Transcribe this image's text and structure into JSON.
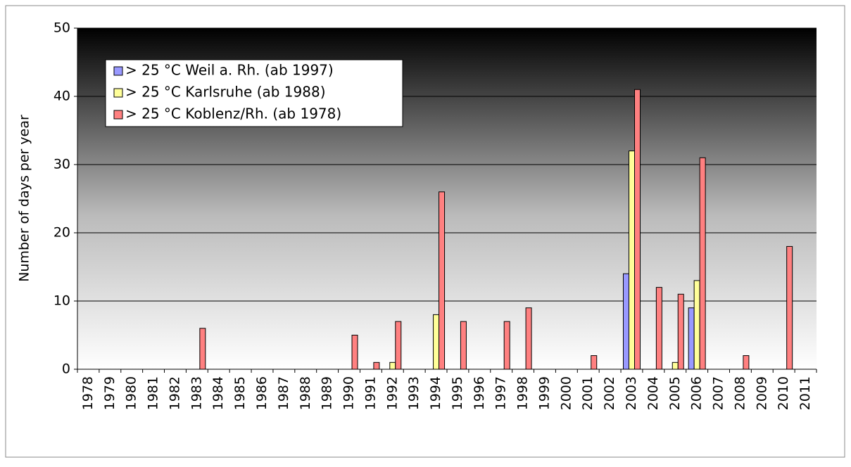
{
  "chart_data": {
    "type": "bar",
    "y_axis_label": "Number of days per year",
    "categories": [
      "1978",
      "1979",
      "1980",
      "1981",
      "1982",
      "1983",
      "1984",
      "1985",
      "1986",
      "1987",
      "1988",
      "1989",
      "1990",
      "1991",
      "1992",
      "1993",
      "1994",
      "1995",
      "1996",
      "1997",
      "1998",
      "1999",
      "2000",
      "2001",
      "2002",
      "2003",
      "2004",
      "2005",
      "2006",
      "2007",
      "2008",
      "2009",
      "2010",
      "2011"
    ],
    "series": [
      {
        "name": "> 25 °C Weil a. Rh. (ab 1997)",
        "color": "#9999ff",
        "values": [
          null,
          null,
          null,
          null,
          null,
          null,
          null,
          null,
          null,
          null,
          null,
          null,
          null,
          null,
          null,
          null,
          null,
          null,
          null,
          0,
          0,
          0,
          0,
          0,
          0,
          14,
          0,
          0,
          9,
          0,
          0,
          0,
          0,
          0
        ]
      },
      {
        "name": "> 25 °C Karlsruhe (ab 1988)",
        "color": "#ffff99",
        "values": [
          null,
          null,
          null,
          null,
          null,
          null,
          null,
          null,
          null,
          null,
          0,
          0,
          0,
          0,
          1,
          0,
          8,
          0,
          0,
          0,
          0,
          0,
          0,
          0,
          0,
          32,
          0,
          1,
          13,
          0,
          0,
          0,
          0,
          0
        ]
      },
      {
        "name": "> 25 °C Koblenz/Rh. (ab 1978)",
        "color": "#ff8080",
        "values": [
          0,
          0,
          0,
          0,
          0,
          6,
          0,
          0,
          0,
          0,
          0,
          0,
          5,
          1,
          7,
          0,
          26,
          7,
          0,
          7,
          9,
          0,
          0,
          2,
          0,
          41,
          12,
          11,
          31,
          0,
          2,
          0,
          18,
          0
        ]
      }
    ],
    "ylim": [
      0,
      50
    ],
    "yticks": [
      0,
      10,
      20,
      30,
      40,
      50
    ],
    "grid": true,
    "legend": "upper left"
  }
}
